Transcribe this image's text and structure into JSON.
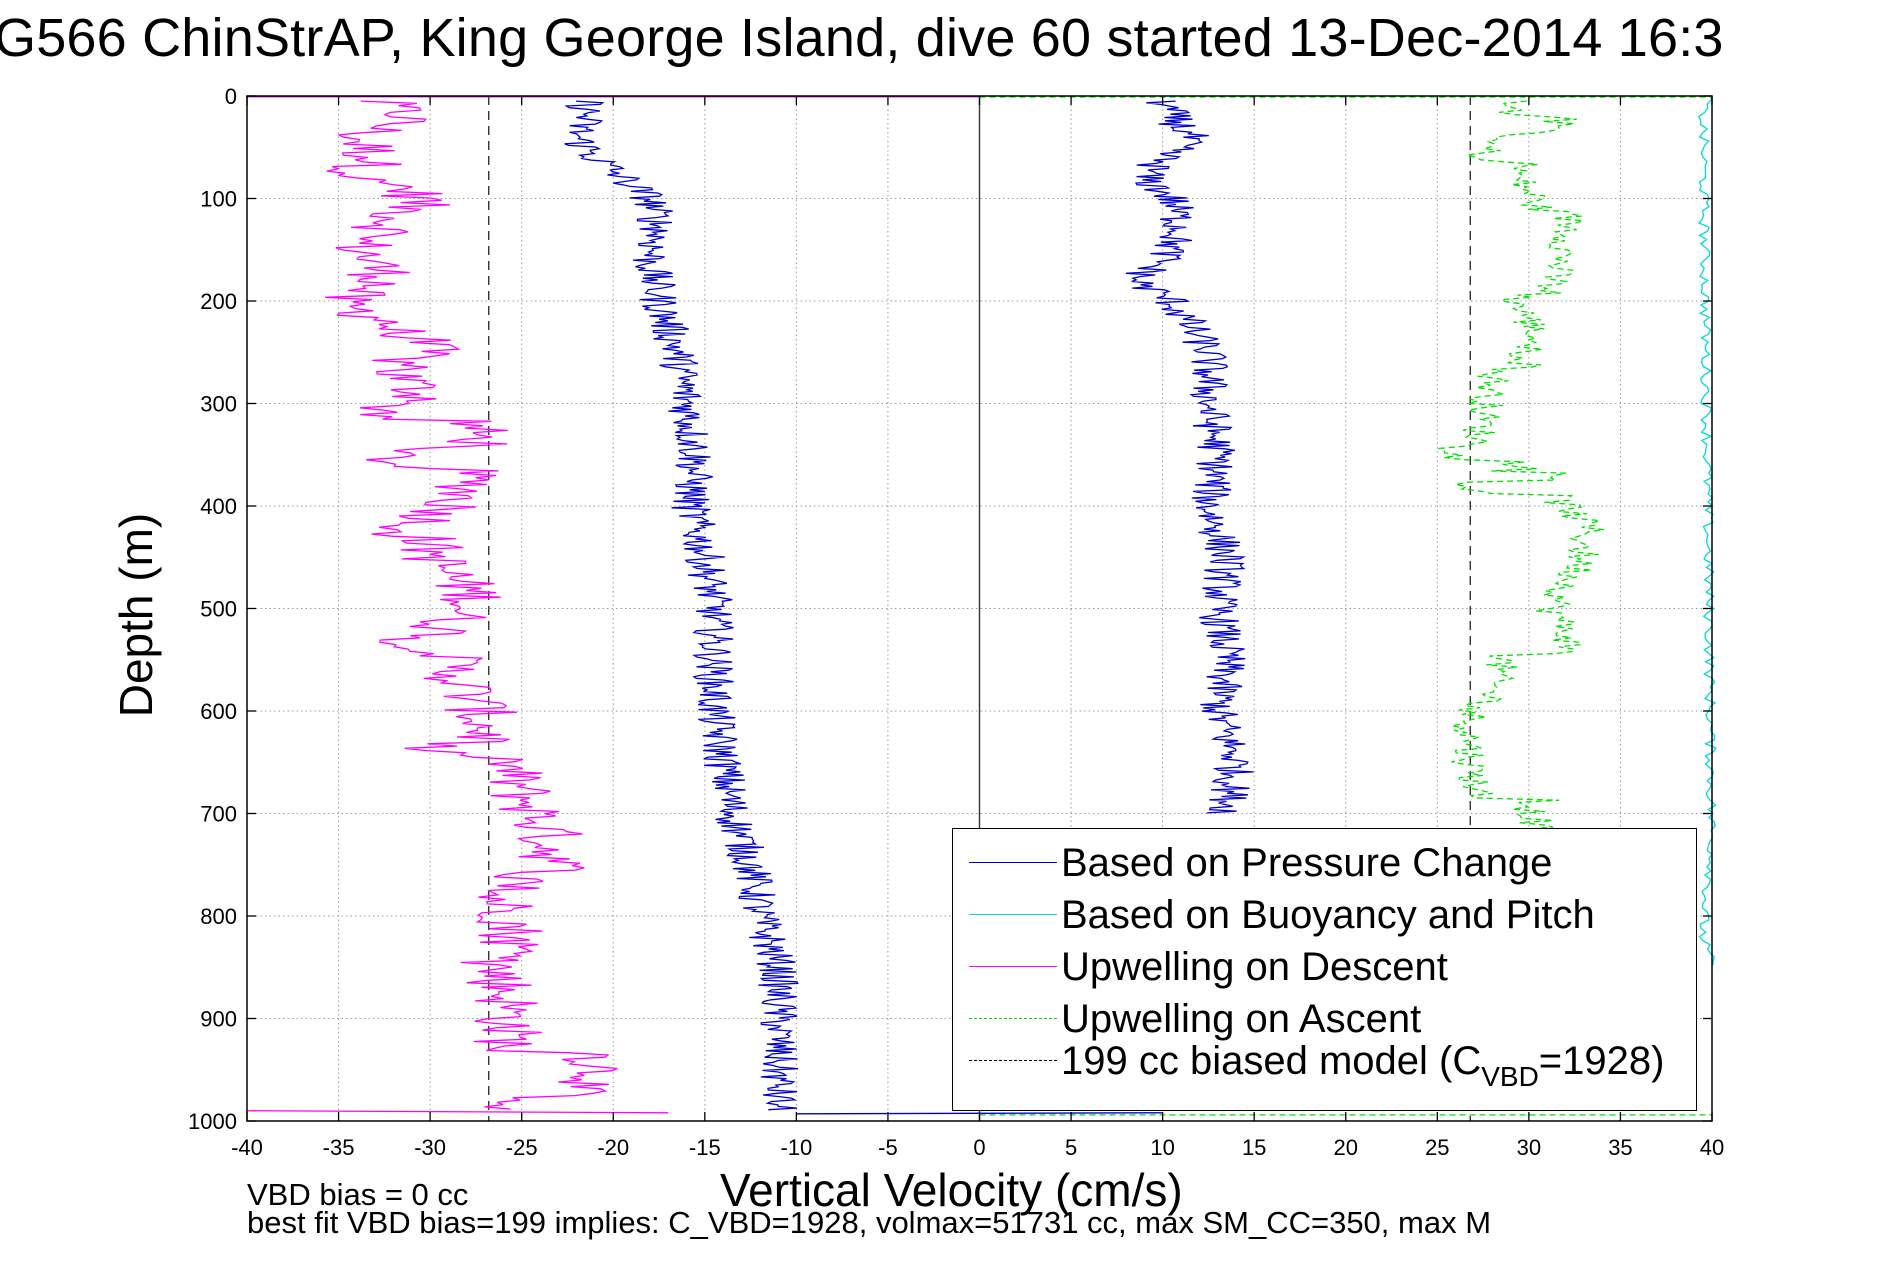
{
  "title": "G566 ChinStrAP, King George Island, dive 60 started 13-Dec-2014 16:3",
  "footnotes": {
    "bias": "VBD bias = 0 cc",
    "fit": "best fit VBD bias=199 implies: C_VBD=1928, volmax=51731 cc, max SM_CC=350, max M"
  },
  "colors": {
    "pressure": "#0000cc",
    "buoyancy": "#00d8d8",
    "upwelling_descent": "#ff00ff",
    "upwelling_ascent": "#00e000",
    "model": "#000000"
  },
  "legend": {
    "items": [
      {
        "label": "Based on Pressure Change",
        "color": "#0000cc",
        "style": "solid"
      },
      {
        "label": "Based on Buoyancy and Pitch",
        "color": "#00d8d8",
        "style": "solid"
      },
      {
        "label": "Upwelling on Descent",
        "color": "#ff00ff",
        "style": "solid"
      },
      {
        "label": "Upwelling on Ascent",
        "color": "#00e000",
        "style": "dashed"
      },
      {
        "label_prefix": "199 cc biased model (C",
        "label_sub": "VBD",
        "label_suffix": "=1928)",
        "color": "#000000",
        "style": "dashed"
      }
    ],
    "position": "bottom-right"
  },
  "chart_data": {
    "type": "line",
    "xlabel": "Vertical Velocity (cm/s)",
    "ylabel": "Depth (m)",
    "xlim": [
      -40,
      40
    ],
    "ylim": [
      1000,
      0
    ],
    "x_ticks": [
      "-40",
      "-35",
      "-30",
      "-25",
      "-20",
      "-15",
      "-10",
      "-5",
      "0",
      "5",
      "10",
      "15",
      "20",
      "25",
      "30",
      "35",
      "40"
    ],
    "y_ticks": [
      "0",
      "100",
      "200",
      "300",
      "400",
      "500",
      "600",
      "700",
      "800",
      "900",
      "1000"
    ],
    "grid": true,
    "vertical_lines": [
      {
        "x": -26.8,
        "style": "dashed"
      },
      {
        "x": 0,
        "style": "solid"
      },
      {
        "x": 26.8,
        "style": "dashed"
      }
    ],
    "series": [
      {
        "name": "Based on Pressure Change",
        "color": "#0000cc",
        "descent": {
          "depth": [
            5,
            20,
            40,
            60,
            80,
            100,
            130,
            160,
            200,
            250,
            300,
            350,
            400,
            450,
            500,
            550,
            600,
            650,
            700,
            750,
            800,
            850,
            900,
            950,
            990
          ],
          "velocity": [
            -21.5,
            -21.5,
            -22,
            -21,
            -19.5,
            -18,
            -17.5,
            -18,
            -17.5,
            -16.5,
            -16,
            -15.5,
            -15.8,
            -15,
            -14.5,
            -14.5,
            -14.5,
            -14,
            -13.5,
            -12.5,
            -12,
            -11,
            -11,
            -11,
            -11
          ]
        },
        "ascent": {
          "depth": [
            5,
            20,
            40,
            60,
            80,
            100,
            130,
            160,
            180,
            200,
            250,
            300,
            350,
            400,
            450,
            500,
            550,
            600,
            650,
            700
          ],
          "velocity": [
            10,
            10.5,
            11.5,
            10,
            9,
            10.5,
            11,
            10,
            8.5,
            10.5,
            12.5,
            12.5,
            13,
            12.5,
            13.5,
            13,
            13.5,
            13,
            14,
            13.5
          ]
        }
      },
      {
        "name": "Based on Buoyancy and Pitch",
        "color": "#00d8d8",
        "depth": [
          0,
          10,
          750,
          790,
          820,
          850
        ],
        "velocity": [
          40,
          39.5,
          40,
          39.6,
          39.5,
          40
        ]
      },
      {
        "name": "Upwelling on Descent",
        "color": "#ff00ff",
        "depth": [
          5,
          20,
          40,
          60,
          80,
          100,
          130,
          160,
          180,
          200,
          220,
          250,
          270,
          300,
          320,
          350,
          380,
          400,
          430,
          460,
          490,
          520,
          560,
          600,
          650,
          680,
          720,
          760,
          800,
          840,
          880,
          920,
          960,
          990
        ],
        "velocity": [
          -33,
          -31,
          -34,
          -33,
          -34,
          -32,
          -34,
          -33,
          -32,
          -35,
          -32,
          -31,
          -34,
          -32,
          -32,
          -31,
          -30,
          -31,
          -34,
          -33,
          -31,
          -33,
          -32,
          -30.5,
          -30,
          -29,
          -27.5,
          -27,
          -25,
          -25,
          -24,
          -24,
          -23.5,
          -30
        ]
      },
      {
        "name": "Upwelling on Ascent",
        "color": "#00e000",
        "depth": [
          5,
          20,
          40,
          60,
          80,
          100,
          130,
          160,
          200,
          230,
          270,
          300,
          340,
          380,
          420,
          460,
          500,
          530,
          570,
          610,
          650,
          680,
          700,
          720
        ],
        "velocity": [
          29,
          29,
          28.5,
          28,
          27.5,
          28.5,
          29,
          28.5,
          27.5,
          28.5,
          28.5,
          28,
          27.5,
          27.5,
          30,
          29.5,
          28,
          29,
          28,
          27.5,
          27.5,
          28,
          28.5,
          29
        ]
      }
    ]
  }
}
